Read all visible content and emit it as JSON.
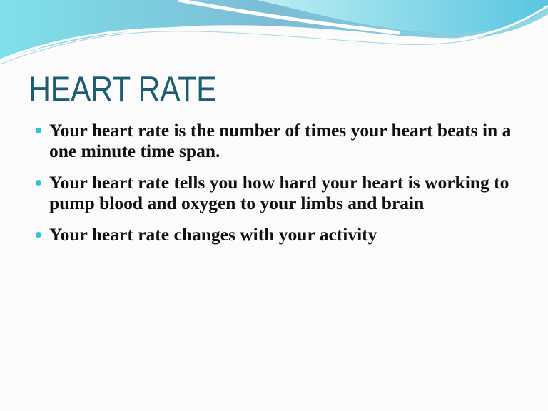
{
  "slide": {
    "title": "HEART RATE",
    "bullets": [
      "Your heart rate is the number of times your heart beats in a one minute time span.",
      "Your heart rate tells you how hard your heart is working to pump blood and oxygen to your limbs and brain",
      "Your heart rate changes with your activity"
    ]
  },
  "colors": {
    "title": "#1b5e73",
    "bullet": "#2cc3d8",
    "wave_light": "#8fe3ee",
    "wave_dark": "#5fb3cf"
  }
}
